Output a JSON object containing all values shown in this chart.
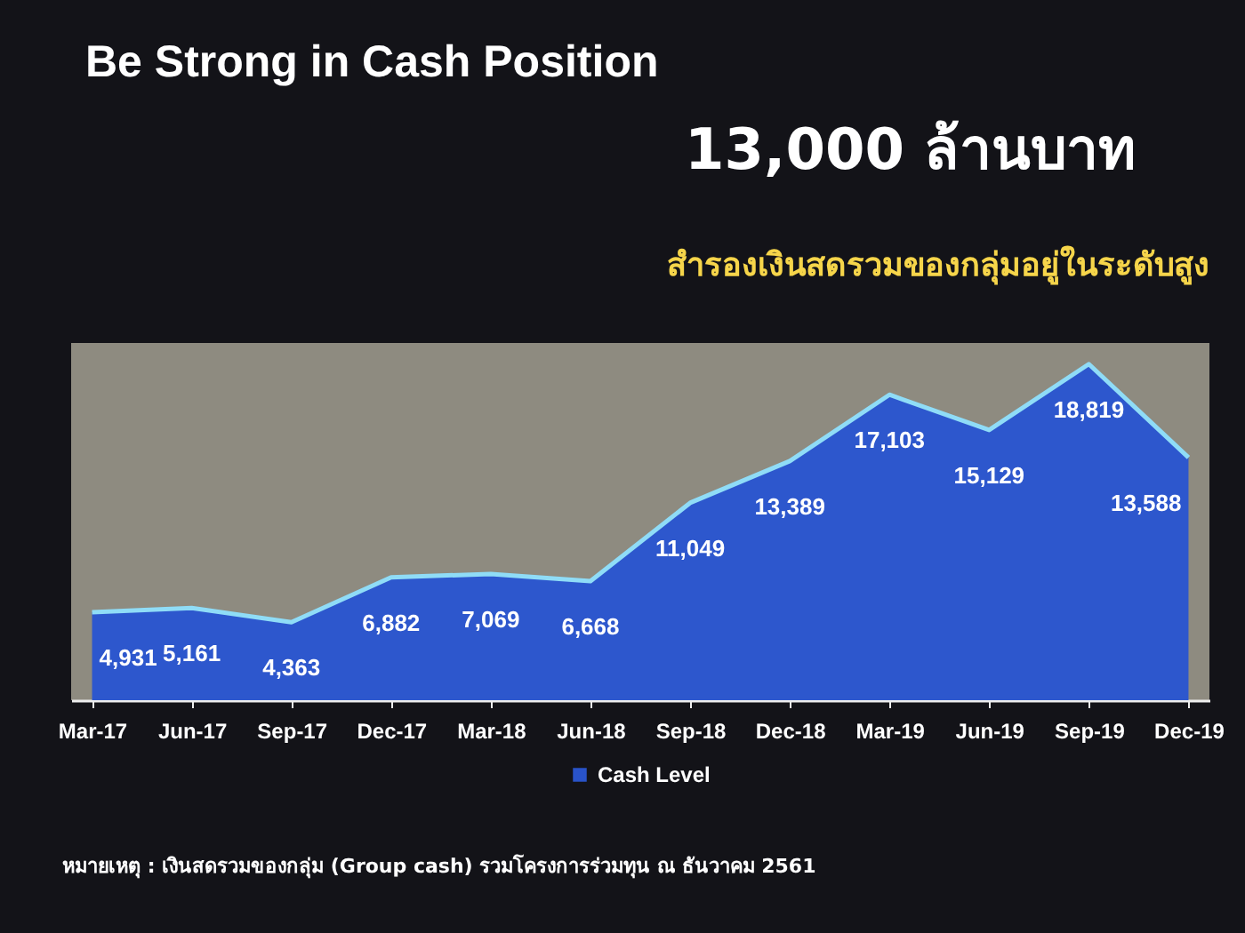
{
  "chart_data": {
    "type": "area",
    "title": "Be Strong in Cash Position",
    "subtitle": "สำรองเงินสดรวมของกลุ่มอยู่ในระดับสูง",
    "annotations": [
      "13,000 ล้านบาท",
      "หมายเหตุ : เงินสดรวมของกลุ่ม (Group cash) รวมโครงการร่วมทุน ณ ธันวาคม 2561"
    ],
    "categories": [
      "Mar-17",
      "Jun-17",
      "Sep-17",
      "Dec-17",
      "Mar-18",
      "Jun-18",
      "Sep-18",
      "Dec-18",
      "Mar-19",
      "Jun-19",
      "Sep-19",
      "Dec-19"
    ],
    "series": [
      {
        "name": "Cash Level",
        "color": "#2a56d0",
        "values": [
          4931,
          5161,
          4363,
          6882,
          7069,
          6668,
          11049,
          13389,
          17103,
          15129,
          18819,
          13588
        ],
        "value_labels": [
          "4,931",
          "5,161",
          "4,363",
          "6,882",
          "7,069",
          "6,668",
          "11,049",
          "13,389",
          "17,103",
          "15,129",
          "18,819",
          "13,588"
        ]
      }
    ],
    "legend": "bottom",
    "tick_labels": "x"
  }
}
